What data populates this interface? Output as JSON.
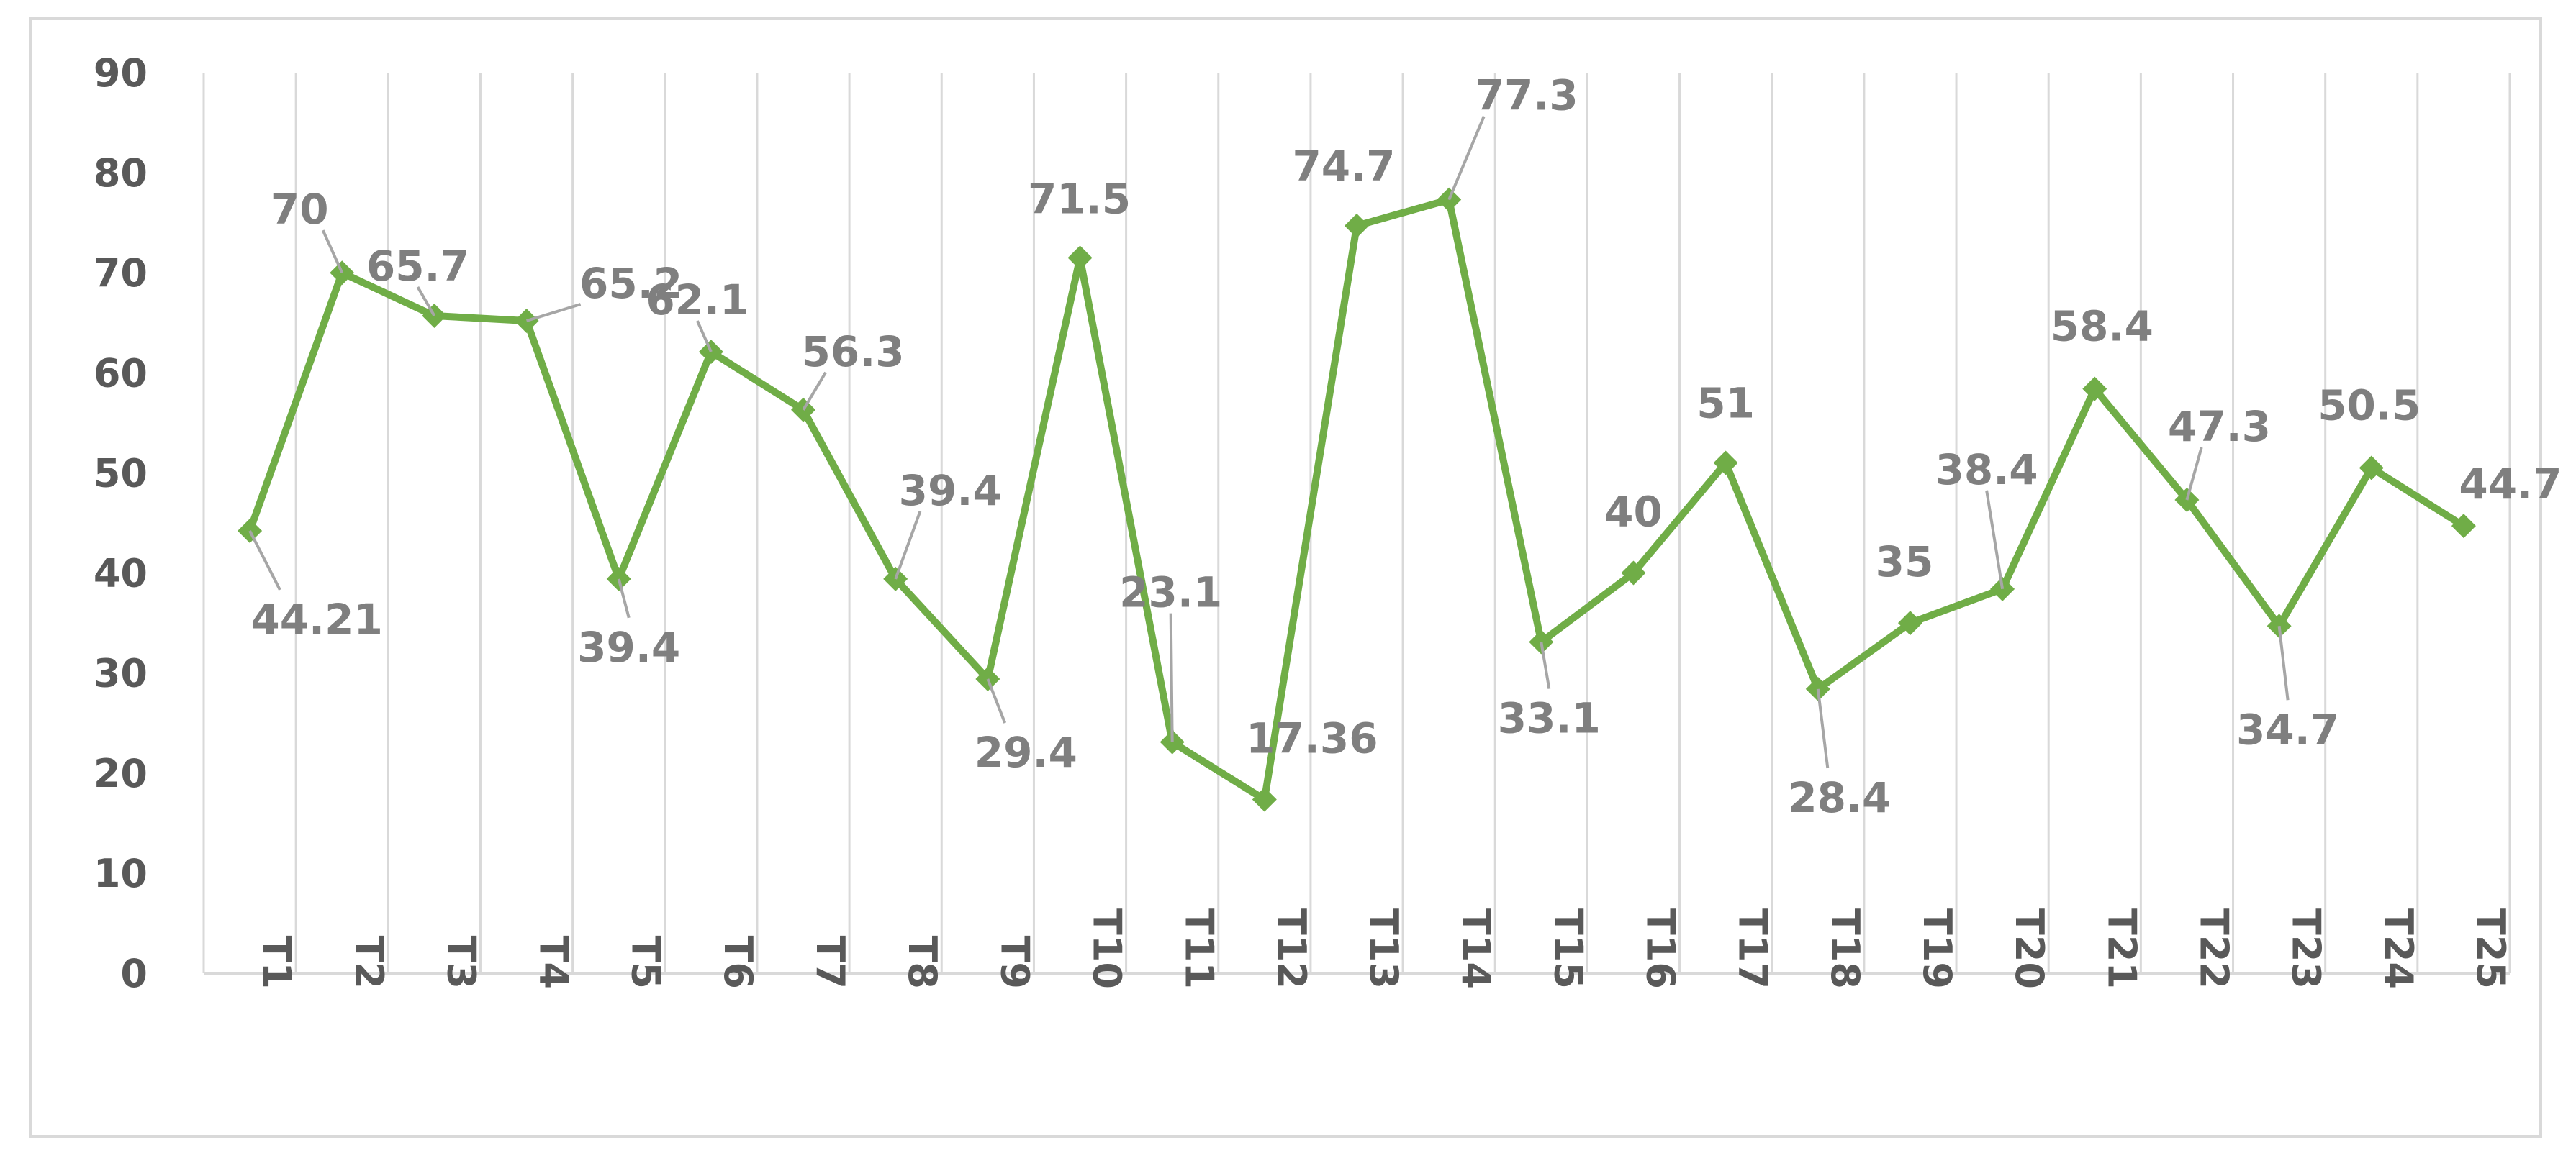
{
  "chart_data": {
    "type": "line",
    "title": "",
    "xlabel": "",
    "ylabel": "",
    "ylim": [
      0,
      90
    ],
    "yticks": [
      0,
      10,
      20,
      30,
      40,
      50,
      60,
      70,
      80,
      90
    ],
    "grid": "vertical",
    "legend": "none",
    "categories": [
      "T1",
      "T2",
      "T3",
      "T4",
      "T5",
      "T6",
      "T7",
      "T8",
      "T9",
      "T10",
      "T11",
      "T12",
      "T13",
      "T14",
      "T15",
      "T16",
      "T17",
      "T18",
      "T19",
      "T20",
      "T21",
      "T22",
      "T23",
      "T24",
      "T25"
    ],
    "series": [
      {
        "values": [
          44.21,
          70,
          65.7,
          65.2,
          39.4,
          62.1,
          56.3,
          39.4,
          29.4,
          71.5,
          23.1,
          17.36,
          74.7,
          77.3,
          33.1,
          40,
          51,
          28.4,
          35,
          38.4,
          58.4,
          47.3,
          34.7,
          50.5,
          44.7
        ],
        "data_labels": [
          "44.21",
          "70",
          "65.7",
          "65.2",
          "39.4",
          "62.1",
          "56.3",
          "39.4",
          "29.4",
          "71.5",
          "23.1",
          "17.36",
          "74.7",
          "77.3",
          "33.1",
          "40",
          "51",
          "28.4",
          "35",
          "38.4",
          "58.4",
          "47.3",
          "34.7",
          "50.5",
          "44.7"
        ],
        "color": "#70ad47",
        "marker": "diamond"
      }
    ],
    "colors": {
      "line": "#70ad47",
      "grid": "#d9d9d9",
      "axis_text": "#595959",
      "label_text": "#7f7f7f",
      "leader": "#a6a6a6"
    }
  }
}
